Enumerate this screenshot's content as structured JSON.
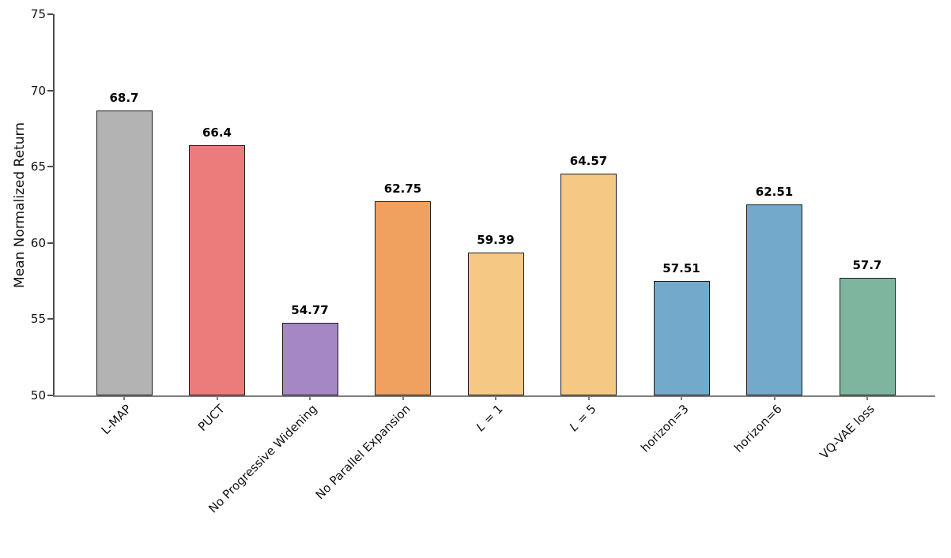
{
  "chart_data": {
    "type": "bar",
    "title": "",
    "xlabel": "",
    "ylabel": "Mean Normalized Return",
    "ylim": [
      50,
      75
    ],
    "yticks": [
      50,
      55,
      60,
      65,
      70,
      75
    ],
    "grid": false,
    "legend_position": "none",
    "x_tick_rotation_deg": 45,
    "categories": [
      {
        "label": "L-MAP"
      },
      {
        "label": "PUCT"
      },
      {
        "label": "No Progressive Widening"
      },
      {
        "label": "No Parallel Expansion"
      },
      {
        "label": "L = 1",
        "italic_var": "L"
      },
      {
        "label": "L = 5",
        "italic_var": "L"
      },
      {
        "label": "horizon=3"
      },
      {
        "label": "horizon=6"
      },
      {
        "label": "VQ-VAE loss"
      }
    ],
    "values": [
      68.7,
      66.4,
      54.77,
      62.75,
      59.39,
      64.57,
      57.51,
      62.51,
      57.7
    ],
    "value_labels": [
      "68.7",
      "66.4",
      "54.77",
      "62.75",
      "59.39",
      "64.57",
      "57.51",
      "62.51",
      "57.7"
    ],
    "bar_colors": [
      "#b3b3b3",
      "#ec7c7c",
      "#a687c6",
      "#f0a05f",
      "#f5c883",
      "#f5c883",
      "#73a9ca",
      "#73a9ca",
      "#7db59e"
    ],
    "bar_edge_color": "#1c1c1c",
    "value_label_color": "#000000",
    "tick_label_color": "#111111",
    "spine_left_color": "#4d4d4d",
    "spine_bottom_color": "#7d7d7d",
    "background_color": "#ffffff"
  }
}
